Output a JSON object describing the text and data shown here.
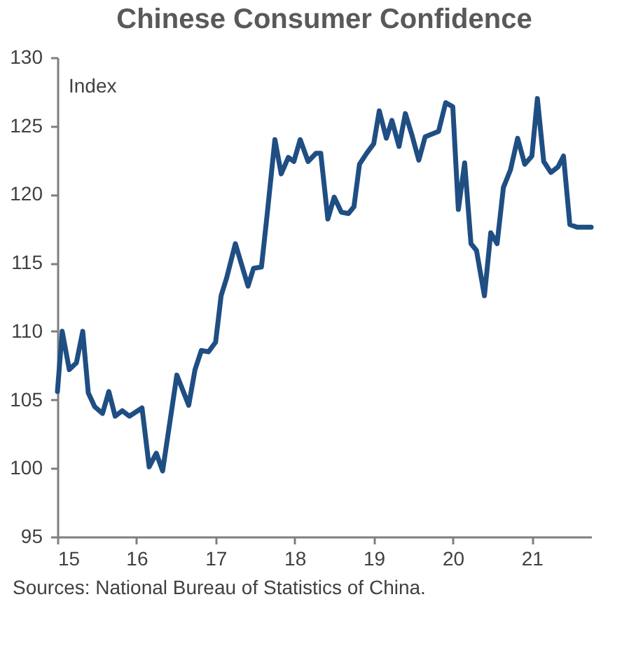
{
  "chart_data": {
    "type": "line",
    "title": "Chinese Consumer Confidence",
    "ylabel": "Index",
    "annotations": [
      "Sources: National Bureau of Statistics of China."
    ],
    "x": [
      15.0,
      15.06,
      15.15,
      15.24,
      15.32,
      15.39,
      15.47,
      15.57,
      15.65,
      15.73,
      15.82,
      15.91,
      16.07,
      16.16,
      16.25,
      16.33,
      16.51,
      16.66,
      16.74,
      16.82,
      16.91,
      17.0,
      17.07,
      17.14,
      17.25,
      17.41,
      17.48,
      17.58,
      17.65,
      17.75,
      17.83,
      17.92,
      17.99,
      18.07,
      18.17,
      18.27,
      18.33,
      18.42,
      18.5,
      18.59,
      18.68,
      18.75,
      18.82,
      18.91,
      19.0,
      19.07,
      19.16,
      19.23,
      19.32,
      19.4,
      19.48,
      19.57,
      19.65,
      19.82,
      19.91,
      20.0,
      20.07,
      20.15,
      20.23,
      20.3,
      20.4,
      20.48,
      20.56,
      20.64,
      20.73,
      20.82,
      20.91,
      21.0,
      21.07,
      21.15,
      21.24,
      21.33,
      21.4,
      21.48,
      21.57,
      21.75
    ],
    "series": [
      {
        "color": "#1f4e83",
        "values": [
          105.6,
          110.0,
          107.2,
          107.7,
          110.0,
          105.5,
          104.5,
          104.0,
          105.6,
          103.8,
          104.2,
          103.8,
          104.4,
          100.1,
          101.1,
          99.8,
          106.8,
          104.6,
          107.2,
          108.6,
          108.5,
          109.2,
          112.6,
          113.9,
          116.4,
          113.3,
          114.6,
          114.7,
          118.4,
          124.0,
          121.5,
          122.7,
          122.4,
          124.0,
          122.4,
          123.0,
          123.0,
          118.2,
          119.8,
          118.7,
          118.6,
          119.1,
          122.2,
          123.0,
          123.7,
          126.1,
          124.1,
          125.4,
          123.5,
          125.9,
          124.4,
          122.5,
          124.2,
          124.6,
          126.7,
          126.4,
          118.9,
          122.3,
          116.4,
          115.9,
          112.6,
          117.2,
          116.4,
          120.5,
          121.8,
          124.1,
          122.2,
          122.8,
          127.0,
          122.4,
          121.6,
          122.0,
          122.8,
          117.8,
          117.6,
          117.6
        ]
      }
    ],
    "xlim": [
      15,
      21.75
    ],
    "xticks": [
      15,
      16,
      17,
      18,
      19,
      20,
      21
    ],
    "ylim": [
      95,
      130
    ],
    "yticks": [
      95,
      100,
      105,
      110,
      115,
      120,
      125,
      130
    ],
    "grid": false,
    "marker": "none",
    "line_style": "solid"
  }
}
